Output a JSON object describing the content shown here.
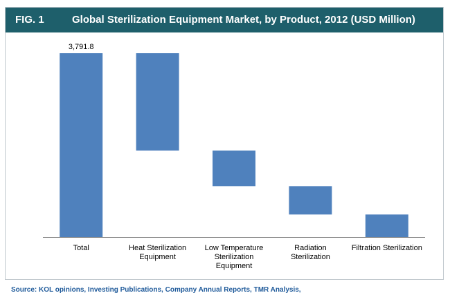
{
  "header": {
    "fig_label": "FIG. 1",
    "title": "Global Sterilization Equipment Market, by Product, 2012 (USD Million)"
  },
  "source": "Source: KOL opinions, Investing Publications, Company Annual Reports, TMR Analysis,",
  "colors": {
    "bar": "#4f81bd",
    "header_bg": "#1e5f6b",
    "source_text": "#1f5a9a"
  },
  "chart_data": {
    "type": "bar",
    "subtype": "waterfall",
    "categories": [
      [
        "Total"
      ],
      [
        "Heat Sterilization",
        "Equipment"
      ],
      [
        "Low Temperature",
        "Sterilization",
        "Equipment"
      ],
      [
        "Radiation",
        "Sterilization"
      ],
      [
        "Filtration Sterilization"
      ]
    ],
    "bars": [
      {
        "start": 0,
        "end": 3791.8
      },
      {
        "start": 1785,
        "end": 3791.8
      },
      {
        "start": 1050,
        "end": 1785
      },
      {
        "start": 465,
        "end": 1050
      },
      {
        "start": 0,
        "end": 465
      }
    ],
    "data_labels": [
      "3,791.8",
      "",
      "",
      "",
      ""
    ],
    "ylim": [
      0,
      3791.8
    ],
    "grid": false,
    "legend": "none"
  }
}
